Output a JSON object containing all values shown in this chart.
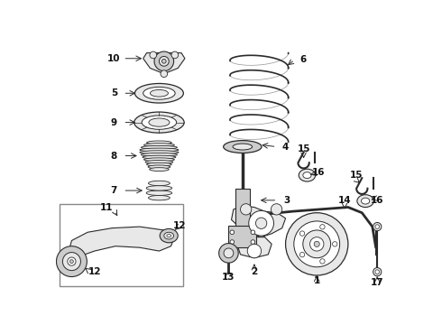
{
  "bg_color": "#ffffff",
  "fig_width": 4.9,
  "fig_height": 3.6,
  "dpi": 100,
  "line_color": "#2a2a2a",
  "text_color": "#111111",
  "fill_light": "#e8e8e8",
  "fill_mid": "#cccccc",
  "fill_dark": "#aaaaaa"
}
